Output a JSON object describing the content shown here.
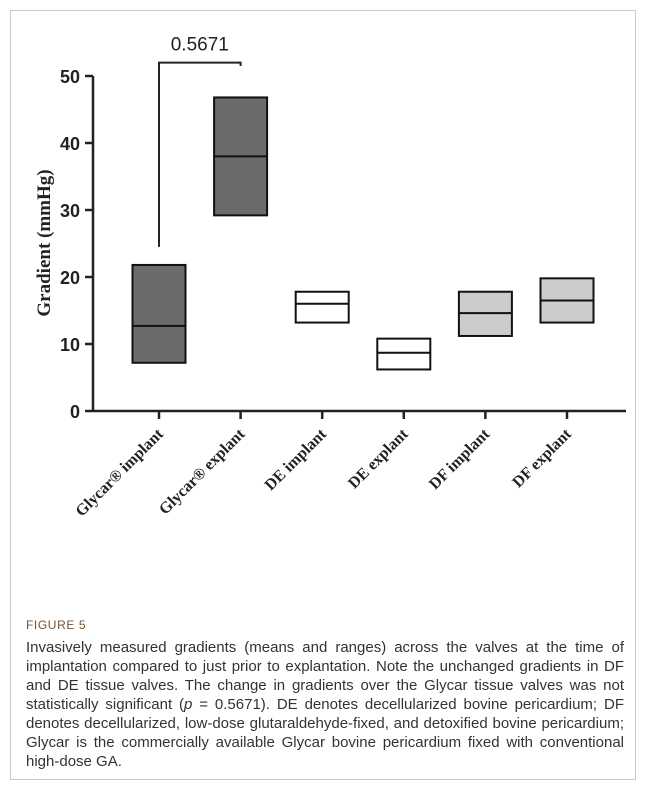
{
  "chart_data": {
    "type": "box",
    "ylabel": "Gradient (mmHg)",
    "ylim": [
      0,
      50
    ],
    "yticks": [
      0,
      10,
      20,
      30,
      40,
      50
    ],
    "categories": [
      "Glycar® implant",
      "Glycar® explant",
      "DE implant",
      "DE explant",
      "DF implant",
      "DF explant"
    ],
    "boxes": [
      {
        "min": 7.2,
        "mean": 12.7,
        "max": 21.8,
        "fill": "#6b6b6b"
      },
      {
        "min": 29.2,
        "mean": 38.0,
        "max": 46.8,
        "fill": "#6b6b6b"
      },
      {
        "min": 13.2,
        "mean": 16.0,
        "max": 17.8,
        "fill": "#ffffff"
      },
      {
        "min": 6.2,
        "mean": 8.7,
        "max": 10.8,
        "fill": "#ffffff"
      },
      {
        "min": 11.2,
        "mean": 14.6,
        "max": 17.8,
        "fill": "#cccccc"
      },
      {
        "min": 13.2,
        "mean": 16.5,
        "max": 19.8,
        "fill": "#cccccc"
      }
    ],
    "annotation": {
      "text": "0.5671",
      "from": 0,
      "to": 1,
      "y_left": 24.5,
      "y_right": 51.5,
      "y_top": 52.0
    }
  },
  "caption": {
    "label": "FIGURE 5",
    "part1": "Invasively measured gradients (means and ranges) across the valves at the time of implantation compared to just prior to explantation. Note the unchanged gradients in DF and DE tissue valves. The change in gradients over the Glycar tissue valves was not statistically significant (",
    "p_symbol": "p",
    "part2": " = 0.5671). DE denotes decellularized bovine pericardium; DF denotes decellularized, low-dose glutaraldehyde-fixed, and detoxified bovine pericardium; Glycar is the commercially available Glycar bovine pericardium fixed with conventional high-dose GA."
  }
}
